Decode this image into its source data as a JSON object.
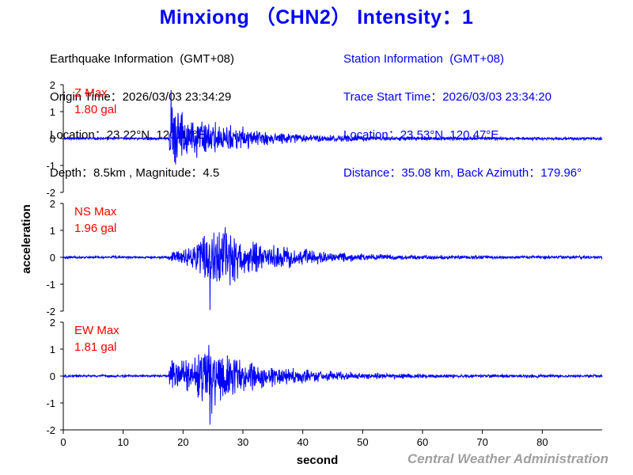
{
  "title": "Minxiong （CHN2） Intensity：1",
  "earthquake_info": {
    "heading": "Earthquake Information  (GMT+08)",
    "origin_time": "Origin Time：2026/03/03 23:34:29",
    "location": "Location：23.22°N, 120.47°E",
    "depth_magnitude": "Depth：8.5km , Magnitude：4.5"
  },
  "station_info": {
    "heading": "Station Information  (GMT+08)",
    "trace_start": "Trace Start Time：2026/03/03 23:34:20",
    "location": "Location：23.53°N, 120.47°E",
    "distance": "Distance：35.08 km, Back Azimuth：179.96°"
  },
  "credit": "Central Weather Administration",
  "colors": {
    "trace": "#0000ff",
    "max_label": "#ff0000",
    "axis": "#000000",
    "credit": "#a0a0a0"
  },
  "chart_data": {
    "type": "line",
    "xlabel": "second",
    "ylabel": "acceleration",
    "xlim": [
      0,
      90
    ],
    "x_ticks": [
      0,
      10,
      20,
      30,
      40,
      50,
      60,
      70,
      80
    ],
    "ylim": [
      -2,
      2
    ],
    "y_ticks": [
      2,
      1,
      0,
      -1,
      -2
    ],
    "grid": false,
    "sample_interval_s": 0.05,
    "series": [
      {
        "name": "Z",
        "max_label": "Z Max",
        "max_value": "1.80 gal",
        "peak": 1.8,
        "onset_s": 17.5,
        "envelope": [
          [
            0,
            0.05
          ],
          [
            17.5,
            0.05
          ],
          [
            18.0,
            1.5
          ],
          [
            19.5,
            1.2
          ],
          [
            21,
            1.0
          ],
          [
            23,
            0.8
          ],
          [
            25,
            0.65
          ],
          [
            27,
            0.55
          ],
          [
            30,
            0.45
          ],
          [
            33,
            0.35
          ],
          [
            37,
            0.25
          ],
          [
            42,
            0.18
          ],
          [
            50,
            0.12
          ],
          [
            60,
            0.08
          ],
          [
            70,
            0.07
          ],
          [
            90,
            0.06
          ]
        ]
      },
      {
        "name": "NS",
        "max_label": "NS Max",
        "max_value": "1.96 gal",
        "peak": 1.96,
        "onset_s": 17.5,
        "envelope": [
          [
            0,
            0.05
          ],
          [
            17.5,
            0.05
          ],
          [
            18.5,
            0.35
          ],
          [
            21,
            0.45
          ],
          [
            23,
            0.8
          ],
          [
            24.5,
            1.7
          ],
          [
            26,
            1.5
          ],
          [
            28,
            1.1
          ],
          [
            30,
            0.8
          ],
          [
            33,
            0.6
          ],
          [
            36,
            0.5
          ],
          [
            40,
            0.35
          ],
          [
            45,
            0.22
          ],
          [
            50,
            0.15
          ],
          [
            60,
            0.09
          ],
          [
            75,
            0.07
          ],
          [
            90,
            0.06
          ]
        ]
      },
      {
        "name": "EW",
        "max_label": "EW Max",
        "max_value": "1.81 gal",
        "peak": 1.81,
        "onset_s": 17.5,
        "envelope": [
          [
            0,
            0.05
          ],
          [
            17.5,
            0.05
          ],
          [
            18.2,
            0.9
          ],
          [
            20,
            0.7
          ],
          [
            22,
            0.8
          ],
          [
            24.5,
            1.55
          ],
          [
            26,
            1.2
          ],
          [
            28,
            0.9
          ],
          [
            30,
            0.7
          ],
          [
            33,
            0.5
          ],
          [
            36,
            0.4
          ],
          [
            40,
            0.3
          ],
          [
            45,
            0.2
          ],
          [
            50,
            0.14
          ],
          [
            60,
            0.09
          ],
          [
            75,
            0.07
          ],
          [
            90,
            0.06
          ]
        ]
      }
    ]
  }
}
